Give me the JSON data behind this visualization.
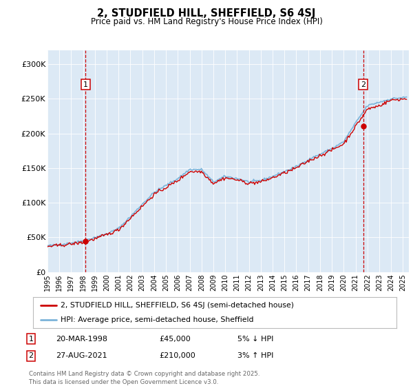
{
  "title": "2, STUDFIELD HILL, SHEFFIELD, S6 4SJ",
  "subtitle": "Price paid vs. HM Land Registry's House Price Index (HPI)",
  "background_color": "#dce9f5",
  "plot_bg_color": "#dce9f5",
  "yticks": [
    0,
    50000,
    100000,
    150000,
    200000,
    250000,
    300000
  ],
  "ytick_labels": [
    "£0",
    "£50K",
    "£100K",
    "£150K",
    "£200K",
    "£250K",
    "£300K"
  ],
  "ylim": [
    0,
    320000
  ],
  "year_start": 1995,
  "year_end": 2025,
  "hpi_color": "#7bb3d9",
  "price_color": "#cc0000",
  "marker1_year": 1998.22,
  "marker1_value": 45000,
  "marker2_year": 2021.65,
  "marker2_value": 210000,
  "legend_label1": "2, STUDFIELD HILL, SHEFFIELD, S6 4SJ (semi-detached house)",
  "legend_label2": "HPI: Average price, semi-detached house, Sheffield",
  "annotation1_date": "20-MAR-1998",
  "annotation1_price": "£45,000",
  "annotation1_hpi": "5% ↓ HPI",
  "annotation2_date": "27-AUG-2021",
  "annotation2_price": "£210,000",
  "annotation2_hpi": "3% ↑ HPI",
  "footer": "Contains HM Land Registry data © Crown copyright and database right 2025.\nThis data is licensed under the Open Government Licence v3.0."
}
